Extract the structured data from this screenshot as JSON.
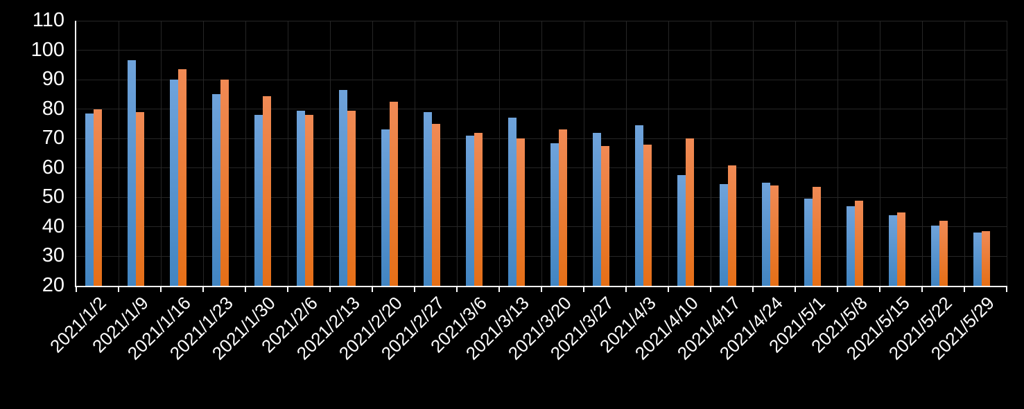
{
  "chart_data": {
    "type": "bar",
    "title": "",
    "legend_position": "none",
    "grid": true,
    "categories": [
      "2021/1/2",
      "2021/1/9",
      "2021/1/16",
      "2021/1/23",
      "2021/1/30",
      "2021/2/6",
      "2021/2/13",
      "2021/2/20",
      "2021/2/27",
      "2021/3/6",
      "2021/3/13",
      "2021/3/20",
      "2021/3/27",
      "2021/4/3",
      "2021/4/10",
      "2021/4/17",
      "2021/4/24",
      "2021/5/1",
      "2021/5/8",
      "2021/5/15",
      "2021/5/22",
      "2021/5/29"
    ],
    "series": [
      {
        "name": "blue-series",
        "color_top": "#6FA3DB",
        "color_bottom": "#4285C2",
        "values": [
          78.5,
          96.5,
          90,
          85,
          78,
          79.5,
          86.5,
          73,
          79,
          71,
          77,
          68.5,
          72,
          74.5,
          57.5,
          54.5,
          55,
          49.5,
          47,
          44,
          40.5,
          38
        ]
      },
      {
        "name": "orange-series",
        "color_top": "#F08A55",
        "color_bottom": "#E56F17",
        "values": [
          80,
          79,
          93.5,
          90,
          84.5,
          78,
          79.5,
          82.5,
          75,
          72,
          70,
          73,
          67.5,
          68,
          70,
          61,
          54,
          53.5,
          49,
          45,
          42,
          38.5
        ]
      }
    ],
    "xlabel": "",
    "ylabel": "",
    "ylim": [
      20,
      110
    ],
    "yticks": [
      110,
      100,
      90,
      80,
      70,
      60,
      50,
      40,
      30,
      20
    ],
    "colors": {
      "background": "#000000",
      "gridline": "#262626",
      "axis_line": "#FFFFFF",
      "tick_label": "#FFFFFF"
    }
  }
}
